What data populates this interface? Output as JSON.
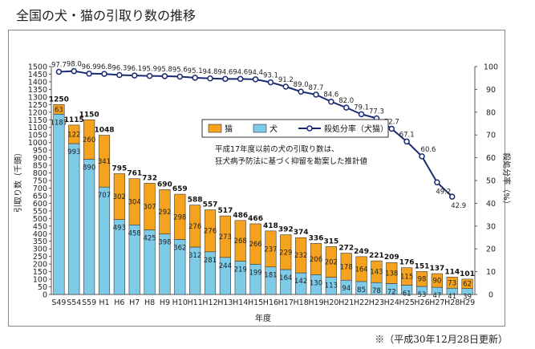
{
  "page": {
    "title": "全国の犬・猫の引取り数の推移",
    "footnote": "※（平成30年12月28日更新）"
  },
  "chart_data": {
    "type": "bar",
    "stacked": true,
    "categories": [
      "S49",
      "S54",
      "S59",
      "H1",
      "H6",
      "H7",
      "H8",
      "H9",
      "H10",
      "H11",
      "H12",
      "H13",
      "H14",
      "H15",
      "H16",
      "H17",
      "H18",
      "H19",
      "H20",
      "H21",
      "H22",
      "H23",
      "H24",
      "H25",
      "H26",
      "H27",
      "H28",
      "H29"
    ],
    "series": [
      {
        "name": "犬",
        "color": "#7ecbe8",
        "values": [
          1187,
          993,
          890,
          707,
          493,
          458,
          425,
          398,
          362,
          312,
          281,
          244,
          219,
          199,
          181,
          164,
          142,
          130,
          113,
          94,
          85,
          78,
          72,
          61,
          53,
          47,
          41,
          39
        ]
      },
      {
        "name": "猫",
        "color": "#f5a21e",
        "values": [
          63,
          122,
          260,
          341,
          302,
          304,
          307,
          292,
          298,
          276,
          276,
          273,
          268,
          266,
          237,
          229,
          232,
          206,
          202,
          178,
          164,
          143,
          138,
          115,
          98,
          90,
          73,
          62
        ]
      }
    ],
    "totals": [
      1250,
      1115,
      1150,
      1048,
      795,
      761,
      732,
      690,
      659,
      588,
      557,
      517,
      486,
      466,
      418,
      392,
      374,
      336,
      315,
      272,
      249,
      221,
      209,
      176,
      151,
      137,
      114,
      101
    ],
    "rate_series": {
      "name": "殺処分率（犬猫）",
      "color": "#1a2a72",
      "values": [
        97.7,
        98.0,
        96.9,
        96.8,
        96.3,
        96.1,
        95.9,
        95.8,
        95.6,
        95.1,
        94.8,
        94.6,
        94.6,
        94.4,
        93.1,
        91.2,
        89.0,
        87.7,
        84.6,
        82.0,
        79.1,
        77.3,
        72.7,
        67.1,
        60.6,
        49.2,
        42.9,
        null
      ]
    },
    "rate_labels": [
      "97.7",
      "98.0",
      "96.9",
      "96.8",
      "96.3",
      "96.1",
      "95.9",
      "95.8",
      "95.6",
      "95.1",
      "94.8",
      "94.6",
      "94.6",
      "94.4",
      "93.1",
      "91.2",
      "89.0",
      "87.7",
      "84.6",
      "82.0",
      "79.1",
      "77.3",
      "72.7",
      "67.1",
      "60.6",
      "49.2",
      "42.9",
      ""
    ],
    "xlabel": "年度",
    "ylabel": "引取り数（千頭）",
    "y2label": "殺処分率（%）",
    "ylim": [
      0,
      1500
    ],
    "y2lim": [
      0,
      100
    ],
    "yticks": [
      "0",
      "50",
      "100",
      "150",
      "200",
      "250",
      "300",
      "350",
      "400",
      "450",
      "500",
      "550",
      "600",
      "650",
      "700",
      "750",
      "800",
      "850",
      "900",
      "950",
      "1000",
      "1050",
      "1100",
      "1150",
      "1200",
      "1250",
      "1300",
      "1350",
      "1400",
      "1450",
      "1500"
    ],
    "y2ticks": [
      "0",
      "10",
      "20",
      "30",
      "40",
      "50",
      "60",
      "70",
      "80",
      "90",
      "100"
    ],
    "legend": {
      "position": "center-top",
      "labels": [
        "猫",
        "犬",
        "殺処分率（犬猫）"
      ]
    },
    "annotation": [
      "平成17年度以前の犬の引取り数は、",
      "狂犬病予防法に基づく抑留を勘案した推計値"
    ],
    "grid": false
  }
}
